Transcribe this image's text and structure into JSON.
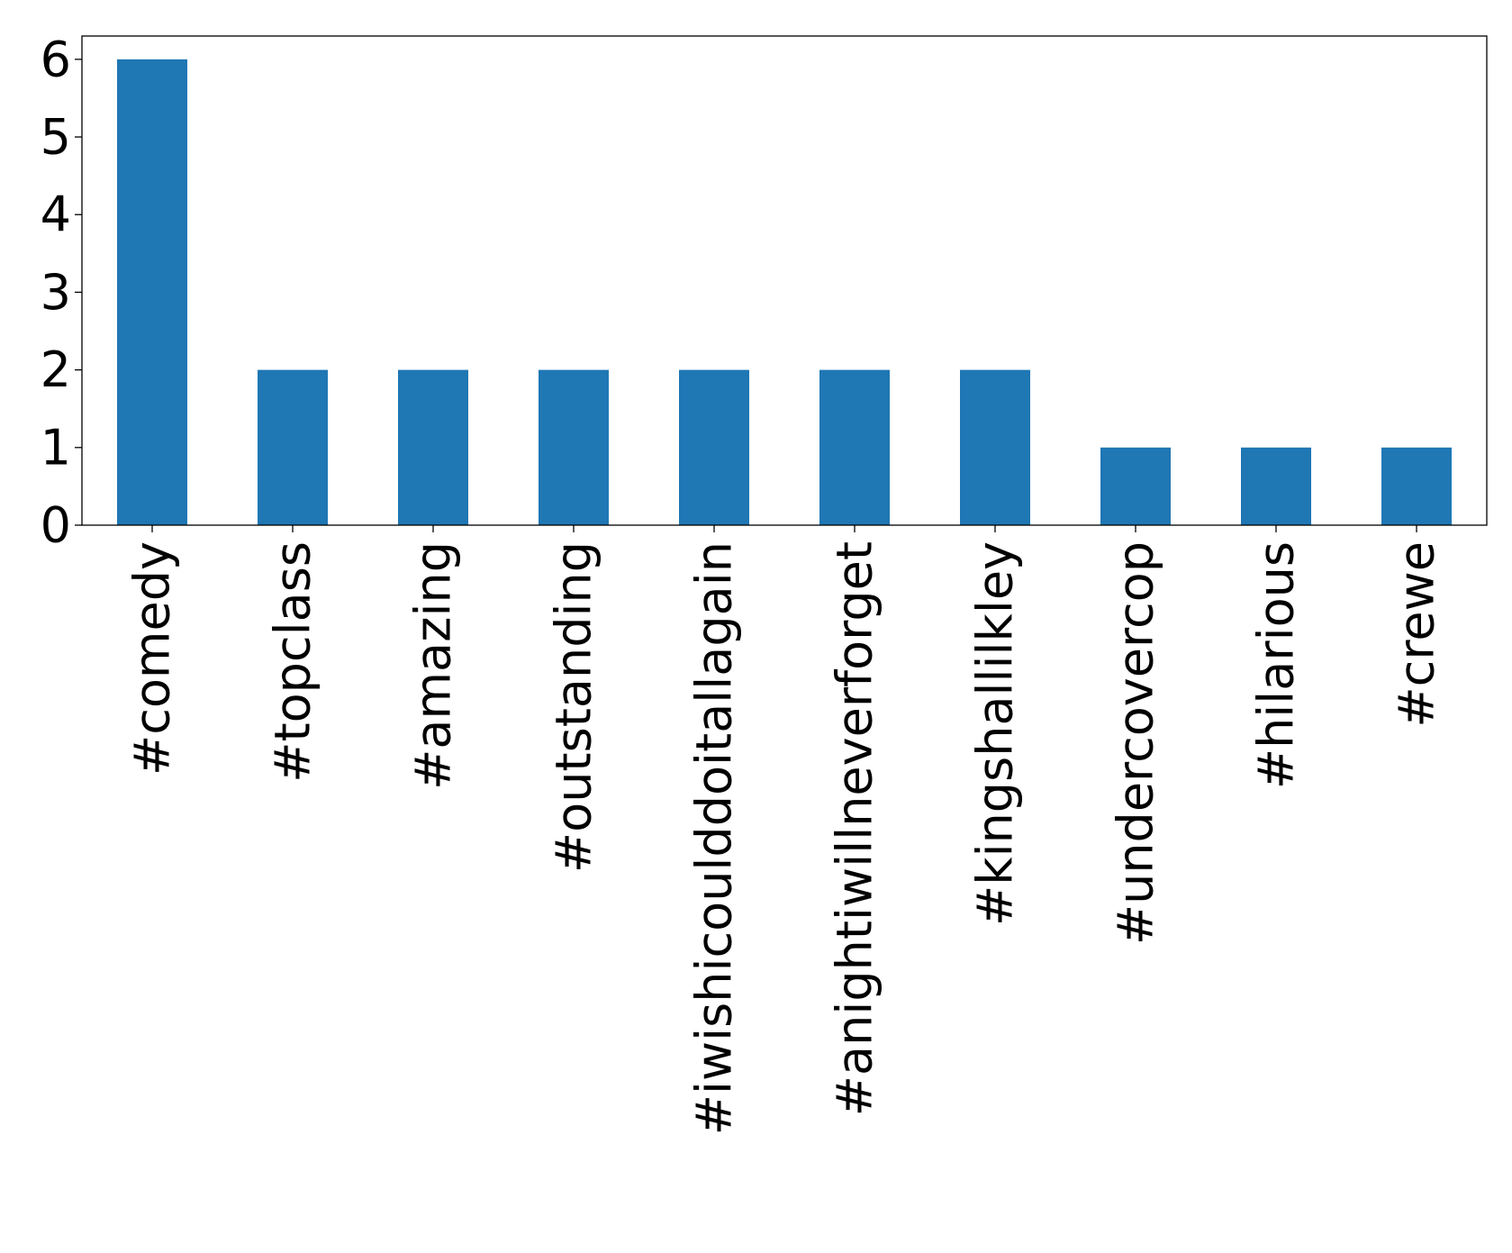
{
  "chart_data": {
    "type": "bar",
    "title": "",
    "xlabel": "",
    "ylabel": "",
    "categories": [
      "#comedy",
      "#topclass",
      "#amazing",
      "#outstanding",
      "#iwishicoulddoitallagain",
      "#anightiwillneverforget",
      "#kingshallilkley",
      "#undercovercop",
      "#hilarious",
      "#crewe"
    ],
    "values": [
      6,
      2,
      2,
      2,
      2,
      2,
      2,
      1,
      1,
      1
    ],
    "ylim": [
      0,
      6.3
    ],
    "yticks": [
      0,
      1,
      2,
      3,
      4,
      5,
      6
    ],
    "grid": false,
    "legend": "none",
    "bar_color": "#1f77b4",
    "x_tick_label_rotation": "vertical"
  }
}
